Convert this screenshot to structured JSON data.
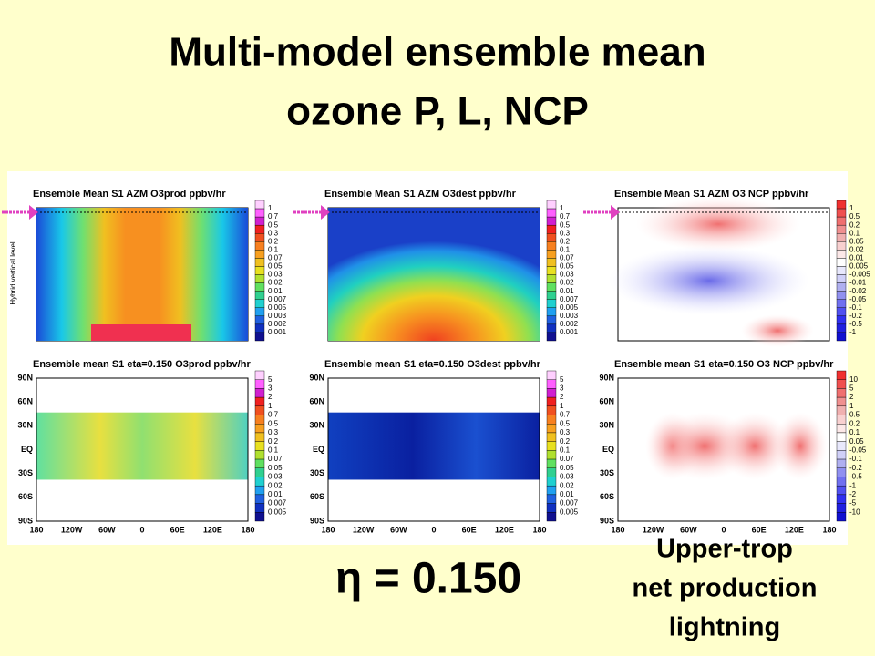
{
  "title": {
    "line1": "Multi-model ensemble mean",
    "line2": "ozone P, L, NCP"
  },
  "y_axis_label": "Hybrid vertical level",
  "panels": [
    {
      "title": "Ensemble Mean S1 AZM O3prod ppbv/hr",
      "colorbar": [
        "1",
        "0.7",
        "0.5",
        "0.3",
        "0.2",
        "0.1",
        "0.07",
        "0.05",
        "0.03",
        "0.02",
        "0.01",
        "0.007",
        "0.005",
        "0.003",
        "0.002",
        "0.001"
      ]
    },
    {
      "title": "Ensemble Mean S1 AZM O3dest ppbv/hr",
      "colorbar": [
        "1",
        "0.7",
        "0.5",
        "0.3",
        "0.2",
        "0.1",
        "0.07",
        "0.05",
        "0.03",
        "0.02",
        "0.01",
        "0.007",
        "0.005",
        "0.003",
        "0.002",
        "0.001"
      ]
    },
    {
      "title": "Ensemble Mean S1 AZM O3 NCP ppbv/hr",
      "colorbar": [
        "1",
        "0.5",
        "0.2",
        "0.1",
        "0.05",
        "0.02",
        "0.01",
        "0.005",
        "-0.005",
        "-0.01",
        "-0.02",
        "-0.05",
        "-0.1",
        "-0.2",
        "-0.5",
        "-1"
      ]
    },
    {
      "title": "Ensemble mean S1 eta=0.150 O3prod ppbv/hr",
      "colorbar": [
        "5",
        "3",
        "2",
        "1",
        "0.7",
        "0.5",
        "0.3",
        "0.2",
        "0.1",
        "0.07",
        "0.05",
        "0.03",
        "0.02",
        "0.01",
        "0.007",
        "0.005"
      ]
    },
    {
      "title": "Ensemble mean S1 eta=0.150 O3dest ppbv/hr",
      "colorbar": [
        "5",
        "3",
        "2",
        "1",
        "0.7",
        "0.5",
        "0.3",
        "0.2",
        "0.1",
        "0.07",
        "0.05",
        "0.03",
        "0.02",
        "0.01",
        "0.007",
        "0.005"
      ]
    },
    {
      "title": "Ensemble mean S1 eta=0.150 O3 NCP ppbv/hr",
      "colorbar": [
        "10",
        "5",
        "2",
        "1",
        "0.5",
        "0.2",
        "0.1",
        "0.05",
        "-0.05",
        "-0.1",
        "-0.2",
        "-0.5",
        "-1",
        "-2",
        "-5",
        "-10"
      ]
    }
  ],
  "map_axes": {
    "lat": [
      "90N",
      "60N",
      "30N",
      "EQ",
      "30S",
      "60S",
      "90S"
    ],
    "lon": [
      "180",
      "120W",
      "60W",
      "0",
      "60E",
      "120E",
      "180"
    ]
  },
  "eta_label": "η = 0.150",
  "note": [
    "Upper-trop",
    "net production",
    "lightning"
  ]
}
